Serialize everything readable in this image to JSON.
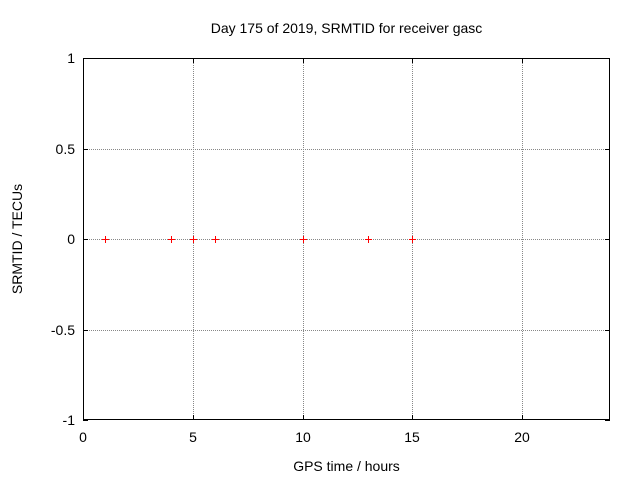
{
  "colors": {
    "background": "#ffffff",
    "border": "#000000",
    "grid": "#888888",
    "text": "#000000",
    "series1": "#ff0000"
  },
  "chart_data": {
    "type": "scatter",
    "title": "Day 175 of 2019, SRMTID for receiver gasc",
    "xlabel": "GPS time / hours",
    "ylabel": "SRMTID / TECUs",
    "xlim": [
      0,
      24
    ],
    "ylim": [
      -1,
      1
    ],
    "xticks": [
      0,
      5,
      10,
      15,
      20
    ],
    "xtick_labels": [
      "0",
      "5",
      "10",
      "15",
      "20"
    ],
    "yticks": [
      1,
      0.5,
      0,
      -0.5,
      -1
    ],
    "ytick_labels": [
      "1",
      "0.5",
      "0",
      "-0.5",
      "-1"
    ],
    "grid": true,
    "legend_position": "none",
    "series": [
      {
        "name": "SRMTID",
        "marker": "plus",
        "color": "#ff0000",
        "x": [
          1,
          4,
          5,
          6,
          10,
          13,
          15
        ],
        "y": [
          0,
          0,
          0,
          0,
          0,
          0,
          0
        ]
      }
    ]
  }
}
